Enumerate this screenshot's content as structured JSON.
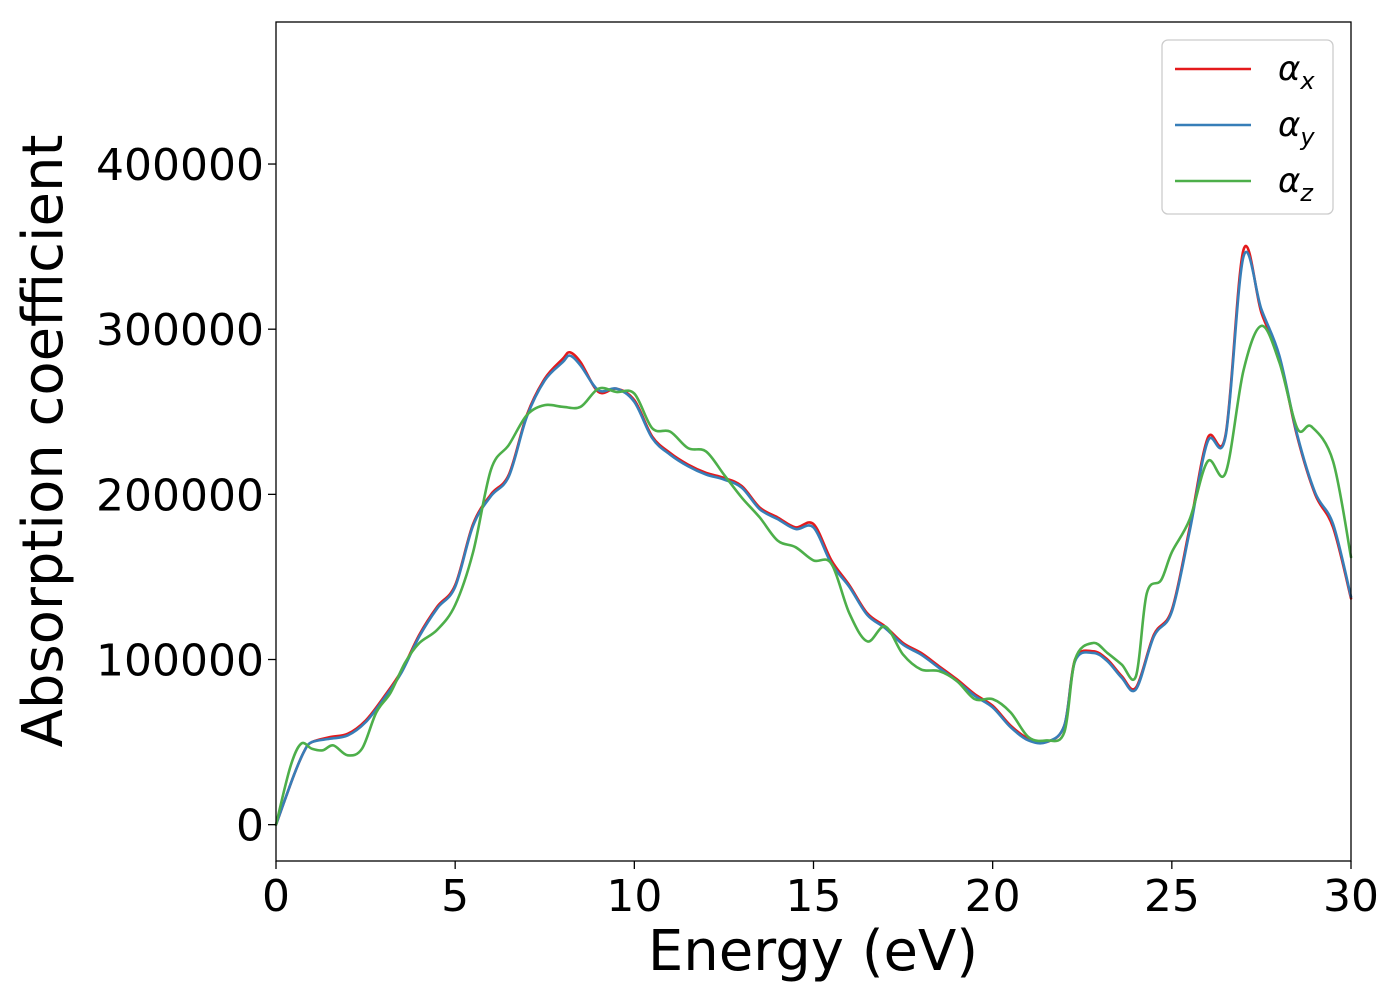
{
  "chart_data": {
    "type": "line",
    "xlabel": "Energy (eV)",
    "ylabel": "Absorption coefficient",
    "xlim": [
      0,
      30
    ],
    "ylim": [
      -22000,
      486000
    ],
    "x_ticks": [
      0,
      5,
      10,
      15,
      20,
      25,
      30
    ],
    "x_tick_labels": [
      "0",
      "5",
      "10",
      "15",
      "20",
      "25",
      "30"
    ],
    "y_ticks": [
      0,
      100000,
      200000,
      300000,
      400000
    ],
    "y_tick_labels": [
      "0",
      "100000",
      "200000",
      "300000",
      "400000"
    ],
    "grid": false,
    "legend_position": "top-right",
    "series": [
      {
        "name": "αx",
        "symbol": "α",
        "subscript": "x",
        "color": "#e41a1c",
        "x": [
          0,
          0.5,
          0.8,
          1,
          1.5,
          2,
          2.5,
          3,
          3.5,
          4,
          4.5,
          5,
          5.5,
          6,
          6.5,
          7,
          7.5,
          8,
          8.2,
          8.5,
          9,
          9.5,
          10,
          10.5,
          11,
          11.5,
          12,
          12.5,
          13,
          13.5,
          14,
          14.5,
          15,
          15.5,
          16,
          16.5,
          17,
          17.5,
          18,
          18.5,
          19,
          19.5,
          20,
          20.5,
          21,
          21.5,
          22,
          22.3,
          22.8,
          23.2,
          23.6,
          24,
          24.5,
          25,
          25.5,
          26,
          26.5,
          27,
          27.5,
          28,
          28.5,
          29,
          29.5,
          30
        ],
        "y": [
          0,
          30000,
          45000,
          50000,
          53000,
          55000,
          63000,
          77000,
          93000,
          115000,
          132000,
          145000,
          182000,
          200000,
          212000,
          248000,
          270000,
          282000,
          286000,
          280000,
          262000,
          264000,
          257000,
          235000,
          225000,
          218000,
          213000,
          210000,
          205000,
          192000,
          186000,
          180000,
          182000,
          160000,
          145000,
          128000,
          120000,
          110000,
          104000,
          96000,
          88000,
          79000,
          72000,
          60000,
          52000,
          50000,
          60000,
          100000,
          105000,
          100000,
          90000,
          83000,
          115000,
          130000,
          180000,
          234000,
          236000,
          348000,
          310000,
          283000,
          235000,
          200000,
          180000,
          137000
        ]
      },
      {
        "name": "αy",
        "symbol": "α",
        "subscript": "y",
        "color": "#377eb8",
        "x": [
          0,
          0.5,
          0.8,
          1,
          1.5,
          2,
          2.5,
          3,
          3.5,
          4,
          4.5,
          5,
          5.5,
          6,
          6.5,
          7,
          7.5,
          8,
          8.2,
          8.5,
          9,
          9.5,
          10,
          10.5,
          11,
          11.5,
          12,
          12.5,
          13,
          13.5,
          14,
          14.5,
          15,
          15.5,
          16,
          16.5,
          17,
          17.5,
          18,
          18.5,
          19,
          19.5,
          20,
          20.5,
          21,
          21.5,
          22,
          22.3,
          22.8,
          23.2,
          23.6,
          24,
          24.5,
          25,
          25.5,
          26,
          26.5,
          27,
          27.5,
          28,
          28.5,
          29,
          29.5,
          30
        ],
        "y": [
          0,
          30000,
          45000,
          50000,
          52000,
          54000,
          62000,
          76000,
          92000,
          114000,
          131000,
          144000,
          181000,
          199000,
          211000,
          247000,
          269000,
          280000,
          284000,
          278000,
          263000,
          264000,
          256000,
          234000,
          224000,
          217000,
          212000,
          209000,
          204000,
          191000,
          185000,
          179000,
          180000,
          158000,
          144000,
          127000,
          119000,
          109000,
          103000,
          95000,
          87000,
          78000,
          71000,
          59000,
          51000,
          50000,
          60000,
          99000,
          104000,
          99000,
          89000,
          82000,
          114000,
          129000,
          178000,
          232000,
          235000,
          344000,
          312000,
          284000,
          236000,
          201000,
          182000,
          138000
        ]
      },
      {
        "name": "αz",
        "symbol": "α",
        "subscript": "z",
        "color": "#4daf4a",
        "x": [
          0,
          0.4,
          0.7,
          1,
          1.3,
          1.6,
          2,
          2.4,
          2.8,
          3.2,
          3.6,
          4,
          4.5,
          5,
          5.5,
          6,
          6.5,
          7,
          7.5,
          8,
          8.5,
          9,
          9.5,
          10,
          10.5,
          11,
          11.5,
          12,
          12.5,
          13,
          13.5,
          14,
          14.5,
          15,
          15.5,
          16,
          16.5,
          17,
          17.5,
          18,
          18.5,
          19,
          19.5,
          20,
          20.5,
          21,
          21.5,
          22,
          22.3,
          22.8,
          23.2,
          23.6,
          24,
          24.3,
          24.7,
          25,
          25.5,
          26,
          26.5,
          27,
          27.5,
          28,
          28.5,
          28.9,
          29.5,
          30
        ],
        "y": [
          0,
          35000,
          49000,
          46000,
          45000,
          48000,
          42000,
          46000,
          68000,
          80000,
          98000,
          110000,
          118000,
          133000,
          165000,
          215000,
          230000,
          248000,
          254000,
          253000,
          253000,
          264000,
          262000,
          261000,
          240000,
          238000,
          228000,
          226000,
          212000,
          198000,
          186000,
          172000,
          168000,
          160000,
          158000,
          128000,
          111000,
          120000,
          103000,
          94000,
          93000,
          87000,
          76000,
          76000,
          68000,
          53000,
          51000,
          56000,
          100000,
          110000,
          104000,
          97000,
          90000,
          140000,
          148000,
          165000,
          185000,
          220000,
          213000,
          275000,
          302000,
          280000,
          240000,
          241000,
          220000,
          162000
        ]
      }
    ]
  }
}
